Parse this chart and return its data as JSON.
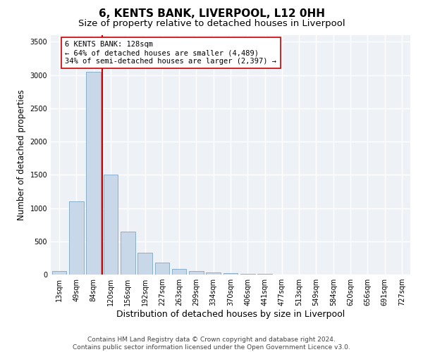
{
  "title": "6, KENTS BANK, LIVERPOOL, L12 0HH",
  "subtitle": "Size of property relative to detached houses in Liverpool",
  "xlabel": "Distribution of detached houses by size in Liverpool",
  "ylabel": "Number of detached properties",
  "footer_line1": "Contains HM Land Registry data © Crown copyright and database right 2024.",
  "footer_line2": "Contains public sector information licensed under the Open Government Licence v3.0.",
  "bar_labels": [
    "13sqm",
    "49sqm",
    "84sqm",
    "120sqm",
    "156sqm",
    "192sqm",
    "227sqm",
    "263sqm",
    "299sqm",
    "334sqm",
    "370sqm",
    "406sqm",
    "441sqm",
    "477sqm",
    "513sqm",
    "549sqm",
    "584sqm",
    "620sqm",
    "656sqm",
    "691sqm",
    "727sqm"
  ],
  "bar_values": [
    50,
    1100,
    3050,
    1500,
    650,
    330,
    180,
    90,
    55,
    35,
    25,
    15,
    10,
    5,
    3,
    2,
    1,
    1,
    0,
    0,
    0
  ],
  "bar_color": "#c8d8e8",
  "bar_edge_color": "#7aa8c8",
  "vline_x_index": 2.5,
  "vline_color": "#cc0000",
  "annotation_text": "6 KENTS BANK: 128sqm\n← 64% of detached houses are smaller (4,489)\n34% of semi-detached houses are larger (2,397) →",
  "annotation_box_color": "#ffffff",
  "annotation_box_edge": "#cc0000",
  "ylim": [
    0,
    3600
  ],
  "yticks": [
    0,
    500,
    1000,
    1500,
    2000,
    2500,
    3000,
    3500
  ],
  "background_color": "#eef2f7",
  "grid_color": "#ffffff",
  "title_fontsize": 11,
  "subtitle_fontsize": 9.5,
  "annotation_fontsize": 7.5,
  "tick_fontsize": 7,
  "ylabel_fontsize": 8.5,
  "xlabel_fontsize": 9,
  "footer_fontsize": 6.5
}
